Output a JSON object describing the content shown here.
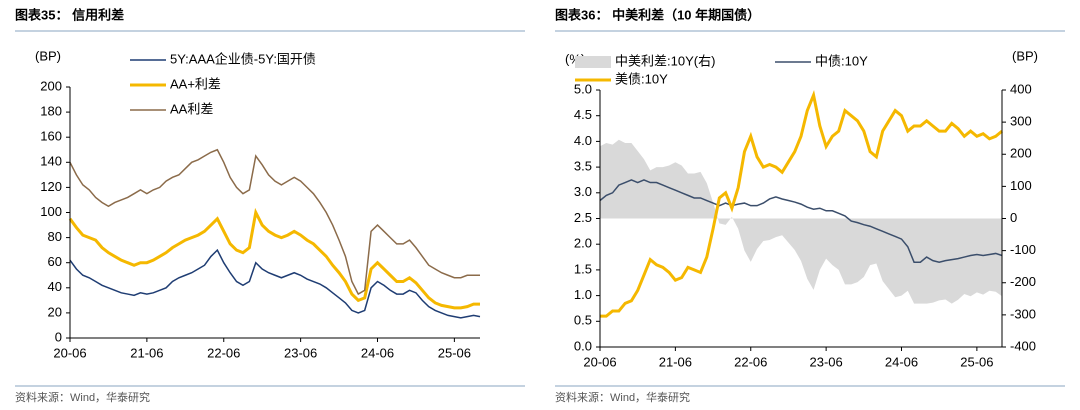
{
  "chart_data": [
    {
      "type": "line",
      "title": "图表35： 信用利差",
      "source": "资料来源：Wind，华泰研究",
      "ylabel": "(BP)",
      "categories": [
        "20-06",
        null,
        null,
        null,
        null,
        null,
        null,
        null,
        null,
        null,
        null,
        null,
        "21-06",
        null,
        null,
        null,
        null,
        null,
        null,
        null,
        null,
        null,
        null,
        null,
        "22-06",
        null,
        null,
        null,
        null,
        null,
        null,
        null,
        null,
        null,
        null,
        null,
        "23-06",
        null,
        null,
        null,
        null,
        null,
        null,
        null,
        null,
        null,
        null,
        null,
        "24-06",
        null,
        null,
        null,
        null,
        null,
        null,
        null,
        null,
        null,
        null,
        null,
        "25-06",
        null,
        null,
        null,
        null
      ],
      "ylim": [
        0,
        200
      ],
      "yticks": [
        0,
        20,
        40,
        60,
        80,
        100,
        120,
        140,
        160,
        180,
        200
      ],
      "series": [
        {
          "name": "5Y:AAA企业债-5Y:国开债",
          "color": "#1f3d73",
          "values": [
            62,
            55,
            50,
            48,
            45,
            42,
            40,
            38,
            36,
            35,
            34,
            36,
            35,
            36,
            38,
            40,
            45,
            48,
            50,
            52,
            55,
            58,
            65,
            70,
            60,
            52,
            45,
            42,
            45,
            60,
            55,
            52,
            50,
            48,
            50,
            52,
            50,
            47,
            45,
            43,
            40,
            36,
            32,
            28,
            22,
            20,
            22,
            40,
            45,
            42,
            38,
            35,
            35,
            38,
            36,
            30,
            25,
            22,
            20,
            18,
            17,
            16,
            17,
            18,
            17
          ]
        },
        {
          "name": "AA+利差",
          "color": "#f5b800",
          "values": [
            95,
            88,
            82,
            80,
            78,
            72,
            68,
            65,
            62,
            60,
            58,
            60,
            60,
            62,
            65,
            68,
            72,
            75,
            78,
            80,
            82,
            85,
            90,
            95,
            85,
            75,
            70,
            68,
            72,
            100,
            90,
            85,
            82,
            80,
            82,
            85,
            82,
            78,
            75,
            70,
            65,
            58,
            52,
            45,
            35,
            30,
            32,
            55,
            60,
            55,
            50,
            45,
            45,
            48,
            44,
            38,
            32,
            28,
            26,
            25,
            24,
            24,
            25,
            27,
            27
          ]
        },
        {
          "name": "AA利差",
          "color": "#8b6b4a",
          "values": [
            140,
            130,
            122,
            118,
            112,
            108,
            105,
            108,
            110,
            112,
            115,
            118,
            115,
            118,
            120,
            125,
            128,
            130,
            135,
            140,
            142,
            145,
            148,
            150,
            140,
            128,
            120,
            115,
            118,
            145,
            138,
            130,
            125,
            122,
            125,
            128,
            125,
            120,
            115,
            108,
            100,
            90,
            78,
            65,
            45,
            35,
            38,
            85,
            90,
            85,
            80,
            75,
            75,
            78,
            72,
            65,
            58,
            55,
            52,
            50,
            48,
            48,
            50,
            50,
            50
          ]
        }
      ]
    },
    {
      "type": "line",
      "title": "图表36： 中美利差（10 年期国债）",
      "source": "资料来源：Wind，华泰研究",
      "ylabel": "(%)",
      "y2label": "(BP)",
      "categories": [
        "20-06",
        null,
        null,
        null,
        null,
        null,
        null,
        null,
        null,
        null,
        null,
        null,
        "21-06",
        null,
        null,
        null,
        null,
        null,
        null,
        null,
        null,
        null,
        null,
        null,
        "22-06",
        null,
        null,
        null,
        null,
        null,
        null,
        null,
        null,
        null,
        null,
        null,
        "23-06",
        null,
        null,
        null,
        null,
        null,
        null,
        null,
        null,
        null,
        null,
        null,
        "24-06",
        null,
        null,
        null,
        null,
        null,
        null,
        null,
        null,
        null,
        null,
        null,
        "25-06",
        null,
        null,
        null,
        null
      ],
      "ylim": [
        0,
        5
      ],
      "yticks": [
        {
          "value": 0,
          "label": "0.0"
        },
        0.5,
        {
          "value": 1,
          "label": "1.0"
        },
        1.5,
        {
          "value": 2,
          "label": "2.0"
        },
        2.5,
        {
          "value": 3,
          "label": "3.0"
        },
        3.5,
        {
          "value": 4,
          "label": "4.0"
        },
        4.5,
        {
          "value": 5,
          "label": "5.0"
        }
      ],
      "y2lim": [
        -400,
        400
      ],
      "y2ticks": [
        -400,
        -300,
        -200,
        -100,
        0,
        100,
        200,
        300,
        400
      ],
      "series": [
        {
          "name": "中美利差:10Y(右)",
          "type": "area",
          "axis": "y2",
          "color": "#d9d9d9",
          "values": [
            225,
            235,
            230,
            245,
            235,
            235,
            210,
            185,
            150,
            160,
            160,
            165,
            175,
            165,
            140,
            140,
            145,
            110,
            50,
            -15,
            -20,
            5,
            -32,
            -100,
            -135,
            -95,
            -70,
            -67,
            -58,
            -52,
            -75,
            -98,
            -132,
            -188,
            -222,
            -160,
            -125,
            -145,
            -160,
            -205,
            -205,
            -198,
            -182,
            -145,
            -140,
            -195,
            -220,
            -245,
            -240,
            -225,
            -265,
            -265,
            -265,
            -262,
            -255,
            -252,
            -265,
            -253,
            -235,
            -242,
            -230,
            -237,
            -225,
            -228,
            -242
          ]
        },
        {
          "name": "中债:10Y",
          "color": "#3b4e6b",
          "values": [
            2.85,
            2.95,
            3.0,
            3.15,
            3.2,
            3.25,
            3.2,
            3.25,
            3.2,
            3.2,
            3.15,
            3.1,
            3.05,
            3.0,
            2.95,
            2.9,
            2.9,
            2.85,
            2.8,
            2.75,
            2.8,
            2.75,
            2.78,
            2.8,
            2.75,
            2.75,
            2.8,
            2.88,
            2.92,
            2.88,
            2.85,
            2.82,
            2.78,
            2.72,
            2.68,
            2.7,
            2.65,
            2.65,
            2.6,
            2.55,
            2.45,
            2.42,
            2.38,
            2.35,
            2.3,
            2.25,
            2.2,
            2.15,
            2.1,
            1.95,
            1.65,
            1.65,
            1.75,
            1.68,
            1.65,
            1.68,
            1.7,
            1.72,
            1.75,
            1.78,
            1.8,
            1.78,
            1.8,
            1.82,
            1.78
          ]
        },
        {
          "name": "美债:10Y",
          "color": "#f5b800",
          "values": [
            0.6,
            0.6,
            0.7,
            0.7,
            0.85,
            0.9,
            1.1,
            1.4,
            1.7,
            1.6,
            1.55,
            1.45,
            1.3,
            1.35,
            1.55,
            1.5,
            1.45,
            1.75,
            2.3,
            2.9,
            3.0,
            2.7,
            3.1,
            3.8,
            4.1,
            3.7,
            3.5,
            3.55,
            3.5,
            3.4,
            3.6,
            3.8,
            4.1,
            4.6,
            4.9,
            4.3,
            3.9,
            4.1,
            4.2,
            4.6,
            4.5,
            4.4,
            4.2,
            3.8,
            3.7,
            4.2,
            4.4,
            4.6,
            4.5,
            4.2,
            4.3,
            4.3,
            4.4,
            4.3,
            4.2,
            4.2,
            4.35,
            4.25,
            4.1,
            4.2,
            4.1,
            4.15,
            4.05,
            4.1,
            4.2
          ]
        }
      ]
    }
  ]
}
